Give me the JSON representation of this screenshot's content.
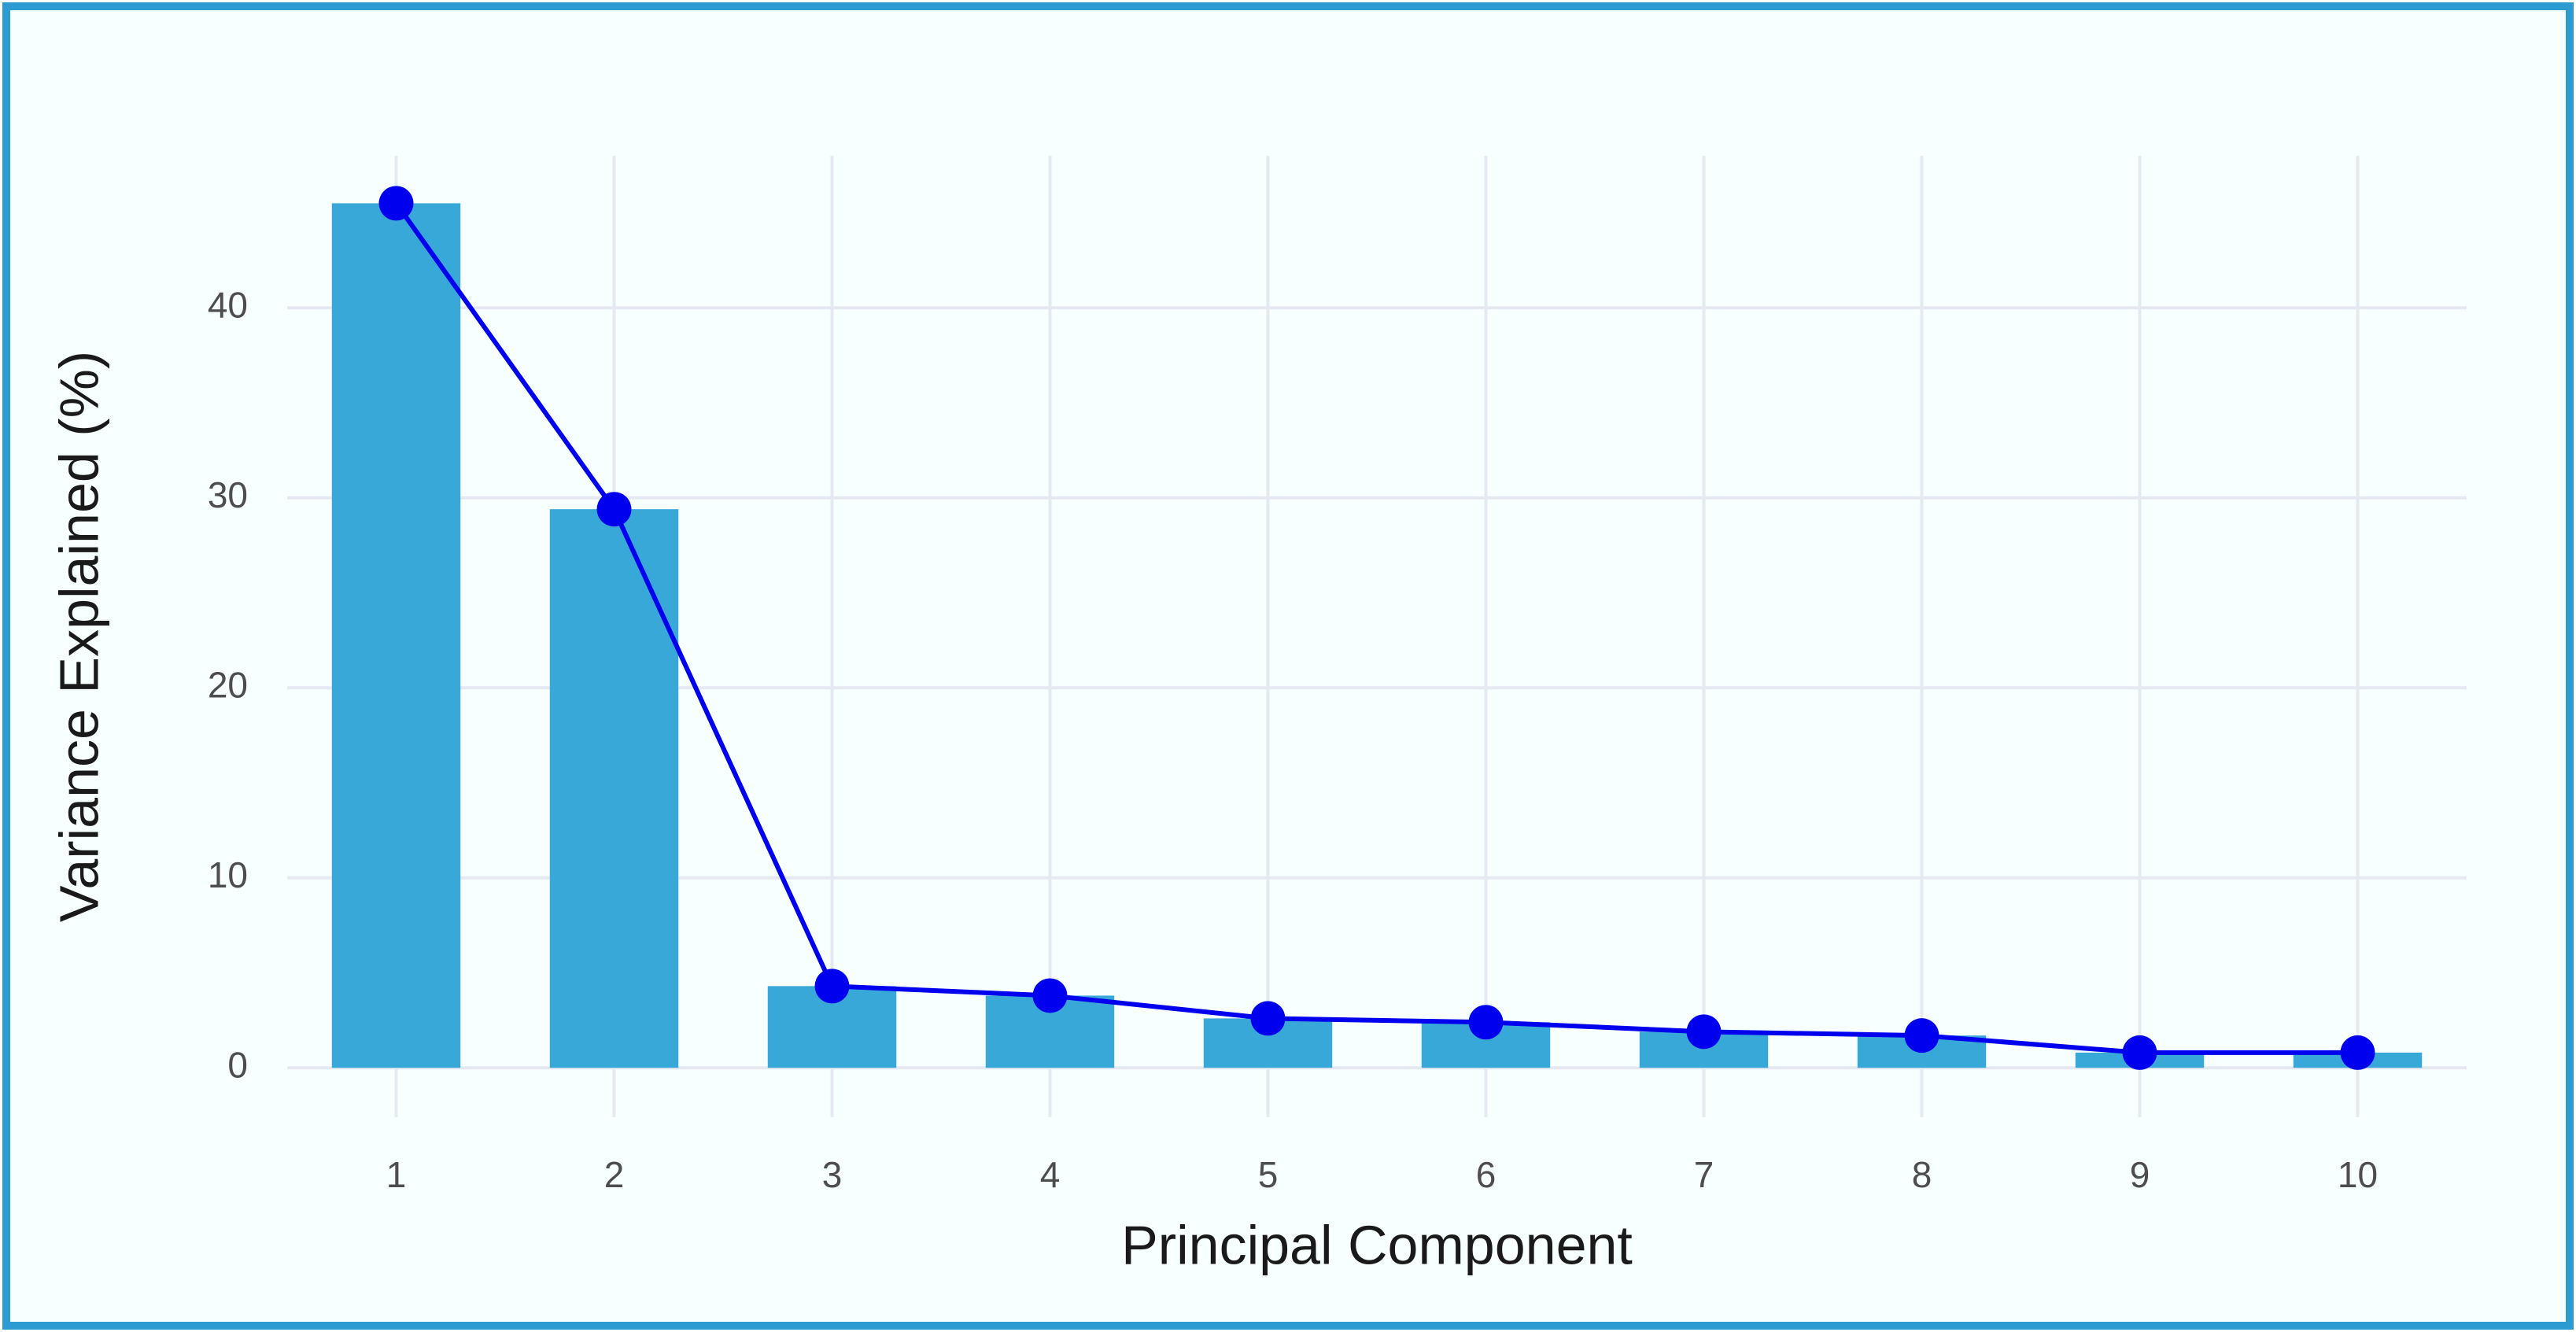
{
  "chart_data": {
    "type": "bar",
    "x_label": "Principal Component",
    "y_label": "Variance Explained (%)",
    "categories": [
      "1",
      "2",
      "3",
      "4",
      "5",
      "6",
      "7",
      "8",
      "9",
      "10"
    ],
    "values": [
      45.5,
      29.4,
      4.3,
      3.8,
      2.6,
      2.4,
      1.9,
      1.7,
      0.8,
      0.8
    ],
    "bar_color": "#38a8d8",
    "line_color": "#0000ee",
    "ylim": [
      -2.6,
      48
    ],
    "yticks": [
      0,
      10,
      20,
      30,
      40
    ],
    "grid": true
  }
}
